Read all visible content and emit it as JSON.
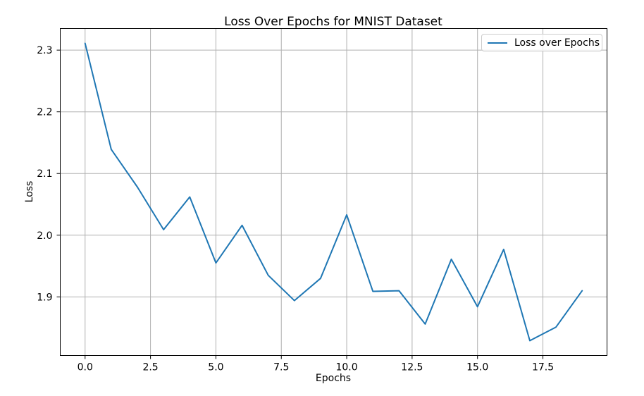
{
  "colors": {
    "line": "#1f77b4",
    "grid": "#b0b0b0",
    "spine": "#000000",
    "text": "#000000",
    "legend_border": "#cccccc"
  },
  "chart_data": {
    "type": "line",
    "title": "Loss Over Epochs for MNIST Dataset",
    "xlabel": "Epochs",
    "ylabel": "Loss",
    "grid": true,
    "legend_position": "upper right",
    "x": [
      0,
      1,
      2,
      3,
      4,
      5,
      6,
      7,
      8,
      9,
      10,
      11,
      12,
      13,
      14,
      15,
      16,
      17,
      18,
      19
    ],
    "series": [
      {
        "name": "Loss over Epochs",
        "values": [
          2.311,
          2.139,
          2.078,
          2.009,
          2.062,
          1.955,
          2.016,
          1.935,
          1.894,
          1.93,
          2.033,
          1.909,
          1.91,
          1.856,
          1.961,
          1.884,
          1.977,
          1.829,
          1.851,
          1.91
        ]
      }
    ],
    "xlim": [
      -0.95,
      19.95
    ],
    "ylim": [
      1.805,
      2.335
    ],
    "xticks": {
      "values": [
        0,
        2.5,
        5,
        7.5,
        10,
        12.5,
        15,
        17.5
      ],
      "labels": [
        "0.0",
        "2.5",
        "5.0",
        "7.5",
        "10.0",
        "12.5",
        "15.0",
        "17.5"
      ]
    },
    "yticks": {
      "values": [
        1.9,
        2.0,
        2.1,
        2.2,
        2.3
      ],
      "labels": [
        "1.9",
        "2.0",
        "2.1",
        "2.2",
        "2.3"
      ]
    }
  }
}
